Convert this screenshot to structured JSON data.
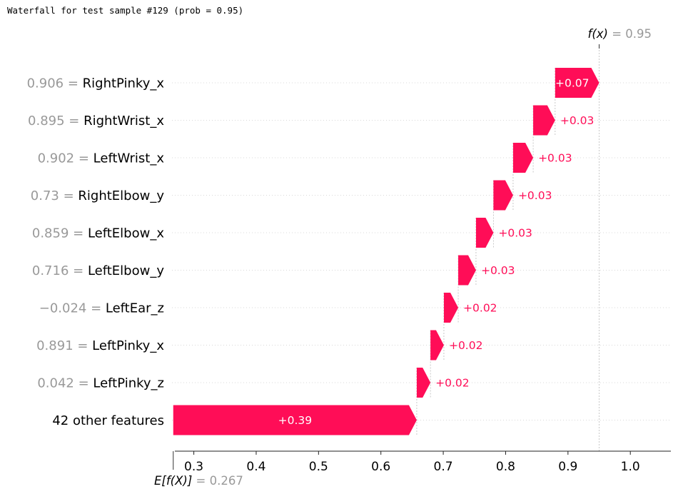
{
  "header_text": "Waterfall for test sample #129 (prob = 0.95)",
  "colors": {
    "positive": "#ff0d57",
    "grid": "#cccccc",
    "muted": "#999999"
  },
  "chart_data": {
    "type": "waterfall",
    "title": "Waterfall for test sample #129 (prob = 0.95)",
    "base_value": 0.267,
    "base_value_label": "E[f(X)] = 0.267",
    "output_value": 0.95,
    "output_value_label": "f(x) = 0.95",
    "xlim": [
      0.265,
      1.065
    ],
    "x_ticks": [
      {
        "v": 0.3,
        "label": "0.3"
      },
      {
        "v": 0.4,
        "label": "0.4"
      },
      {
        "v": 0.5,
        "label": "0.5"
      },
      {
        "v": 0.6,
        "label": "0.6"
      },
      {
        "v": 0.7,
        "label": "0.7"
      },
      {
        "v": 0.8,
        "label": "0.8"
      },
      {
        "v": 0.9,
        "label": "0.9"
      },
      {
        "v": 1.0,
        "label": "1.0"
      }
    ],
    "features": [
      {
        "value": "0.906",
        "name": "RightPinky_x",
        "start": 0.8794,
        "end": 0.95,
        "label": "+0.07"
      },
      {
        "value": "0.895",
        "name": "RightWrist_x",
        "start": 0.8442,
        "end": 0.8794,
        "label": "+0.03"
      },
      {
        "value": "0.902",
        "name": "LeftWrist_x",
        "start": 0.812,
        "end": 0.8442,
        "label": "+0.03"
      },
      {
        "value": "0.73",
        "name": "RightElbow_y",
        "start": 0.7805,
        "end": 0.812,
        "label": "+0.03"
      },
      {
        "value": "0.859",
        "name": "LeftElbow_x",
        "start": 0.7525,
        "end": 0.7805,
        "label": "+0.03"
      },
      {
        "value": "0.716",
        "name": "LeftElbow_y",
        "start": 0.724,
        "end": 0.7525,
        "label": "+0.03"
      },
      {
        "value": "−0.024",
        "name": "LeftEar_z",
        "start": 0.701,
        "end": 0.724,
        "label": "+0.02"
      },
      {
        "value": "0.891",
        "name": "LeftPinky_x",
        "start": 0.6795,
        "end": 0.701,
        "label": "+0.02"
      },
      {
        "value": "0.042",
        "name": "LeftPinky_z",
        "start": 0.6575,
        "end": 0.6795,
        "label": "+0.02"
      },
      {
        "value": "",
        "name": "42 other features",
        "start": 0.267,
        "end": 0.6575,
        "label": "+0.39"
      }
    ]
  }
}
